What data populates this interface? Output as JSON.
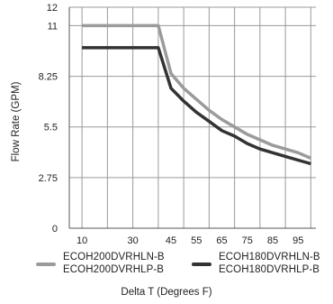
{
  "chart_data": {
    "type": "line",
    "title": "",
    "xlabel": "Delta T (Degrees F)",
    "ylabel": "Flow Rate (GPM)",
    "xlim": [
      5,
      102
    ],
    "ylim": [
      0,
      12
    ],
    "x_ticks": [
      10,
      20,
      30,
      40,
      50,
      60,
      70,
      80,
      90,
      100
    ],
    "x_tick_labels": [
      "10",
      "30",
      "45",
      "55",
      "65",
      "75",
      "85",
      "95"
    ],
    "x_tick_label_values": [
      10,
      30,
      45,
      55,
      65,
      75,
      85,
      95
    ],
    "y_ticks": [
      0,
      2.75,
      5.5,
      8.25,
      11,
      12
    ],
    "y_tick_labels": [
      "0",
      "2.75",
      "5.5",
      "8.25",
      "11",
      "12"
    ],
    "grid": true,
    "legend_position": "bottom",
    "series": [
      {
        "name": "ECOH200DVRHLN-B / ECOH200DVRHLP-B",
        "legend_lines": [
          "ECOH200DVRHLN-B",
          "ECOH200DVRHLP-B"
        ],
        "color": "#9b9b9b",
        "x": [
          10,
          40,
          45,
          50,
          55,
          60,
          65,
          70,
          75,
          80,
          85,
          90,
          95,
          100
        ],
        "y": [
          11.0,
          11.0,
          8.4,
          7.6,
          7.0,
          6.4,
          5.9,
          5.5,
          5.1,
          4.8,
          4.5,
          4.3,
          4.1,
          3.8
        ]
      },
      {
        "name": "ECOH180DVRHLN-B / ECOH180DVRHLP-B",
        "legend_lines": [
          "ECOH180DVRHLN-B",
          "ECOH180DVRHLP-B"
        ],
        "color": "#333333",
        "x": [
          10,
          40,
          45,
          50,
          55,
          60,
          65,
          70,
          75,
          80,
          85,
          90,
          95,
          100
        ],
        "y": [
          9.8,
          9.8,
          7.6,
          6.9,
          6.3,
          5.8,
          5.3,
          5.0,
          4.6,
          4.3,
          4.1,
          3.9,
          3.7,
          3.5
        ]
      }
    ]
  }
}
